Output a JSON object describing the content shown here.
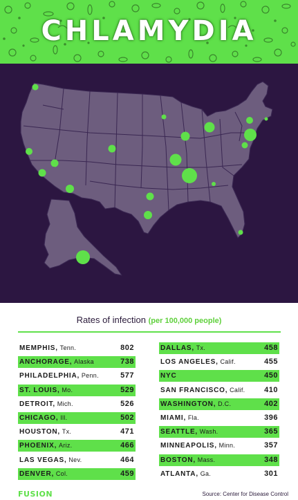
{
  "header": {
    "title": "CHLAMYDIA"
  },
  "colors": {
    "accent": "#5fe04a",
    "background": "#2c1641",
    "land": "#6d5d7e"
  },
  "chart_data": {
    "type": "table",
    "title": "Rates of infection",
    "title_note": "(per 100,000 people)",
    "columns": [
      [
        {
          "city": "MEMPHIS,",
          "state": "Tenn.",
          "value": 802,
          "highlight": false
        },
        {
          "city": "ANCHORAGE,",
          "state": "Alaska",
          "value": 738,
          "highlight": true
        },
        {
          "city": "PHILADELPHIA,",
          "state": "Penn.",
          "value": 577,
          "highlight": false
        },
        {
          "city": "ST. LOUIS,",
          "state": "Mo.",
          "value": 529,
          "highlight": true
        },
        {
          "city": "DETROIT,",
          "state": "Mich.",
          "value": 526,
          "highlight": false
        },
        {
          "city": "CHICAGO,",
          "state": "Ill.",
          "value": 502,
          "highlight": true
        },
        {
          "city": "HOUSTON,",
          "state": "Tx.",
          "value": 471,
          "highlight": false
        },
        {
          "city": "PHOENIX,",
          "state": "Ariz.",
          "value": 466,
          "highlight": true
        },
        {
          "city": "LAS VEGAS,",
          "state": "Nev.",
          "value": 464,
          "highlight": false
        },
        {
          "city": "DENVER,",
          "state": "Col.",
          "value": 459,
          "highlight": true
        }
      ],
      [
        {
          "city": "DALLAS,",
          "state": "Tx.",
          "value": 458,
          "highlight": true
        },
        {
          "city": "LOS ANGELES,",
          "state": "Calif.",
          "value": 455,
          "highlight": false
        },
        {
          "city": "NYC",
          "state": "",
          "value": 450,
          "highlight": true
        },
        {
          "city": "SAN FRANCISCO,",
          "state": "Calif.",
          "value": 410,
          "highlight": false
        },
        {
          "city": "WASHINGTON,",
          "state": "D.C.",
          "value": 402,
          "highlight": true
        },
        {
          "city": "MIAMI,",
          "state": "Fla.",
          "value": 396,
          "highlight": false
        },
        {
          "city": "SEATTLE,",
          "state": "Wash.",
          "value": 365,
          "highlight": true
        },
        {
          "city": "MINNEAPOLIS,",
          "state": "Minn.",
          "value": 357,
          "highlight": false
        },
        {
          "city": "BOSTON,",
          "state": "Mass.",
          "value": 348,
          "highlight": true
        },
        {
          "city": "ATLANTA,",
          "state": "Ga.",
          "value": 301,
          "highlight": false
        }
      ]
    ]
  },
  "footer": {
    "logo": "FUSION",
    "source": "Source: Center for Disease Control"
  }
}
